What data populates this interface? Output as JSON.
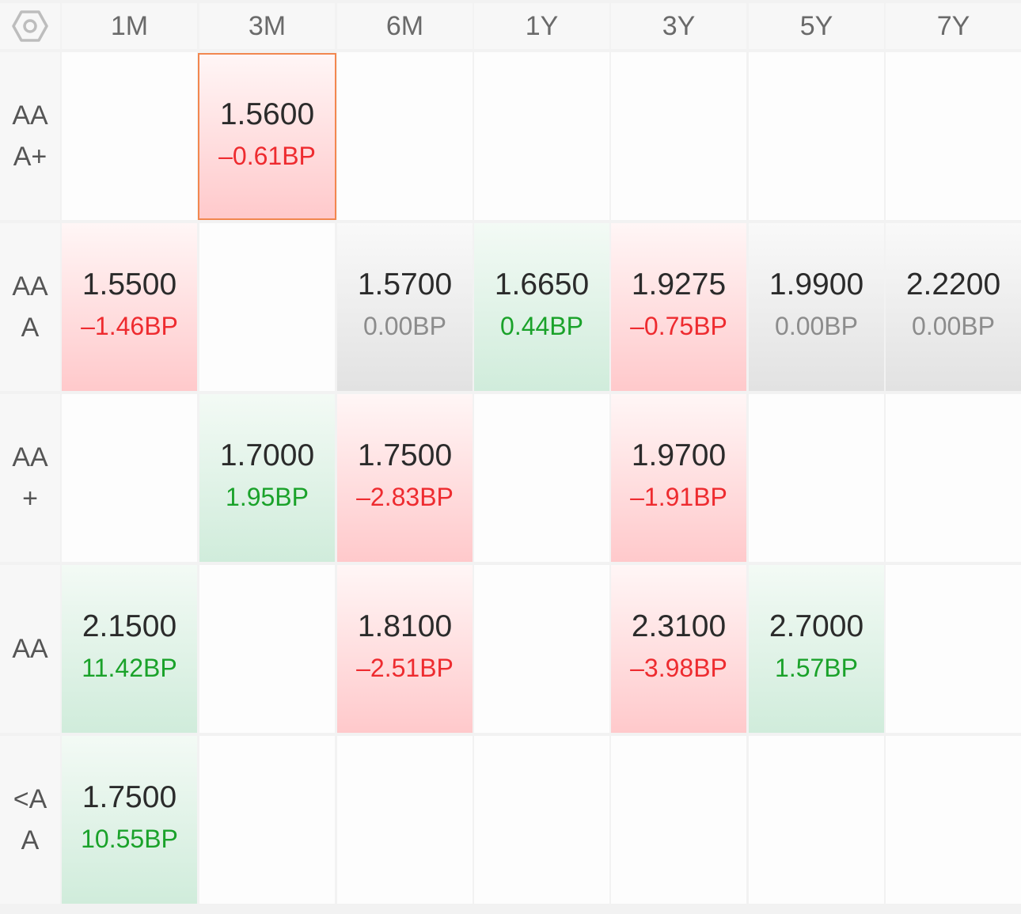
{
  "columns": [
    "1M",
    "3M",
    "6M",
    "1Y",
    "3Y",
    "5Y",
    "7Y"
  ],
  "rows": [
    {
      "label": "AA\nA+",
      "cells": [
        null,
        {
          "rate": "1.5600",
          "change": "–0.61BP",
          "trend": "up",
          "selected": true
        },
        null,
        null,
        null,
        null,
        null
      ]
    },
    {
      "label": "AA\nA",
      "cells": [
        {
          "rate": "1.5500",
          "change": "–1.46BP",
          "trend": "up"
        },
        null,
        {
          "rate": "1.5700",
          "change": "0.00BP",
          "trend": "flat"
        },
        {
          "rate": "1.6650",
          "change": "0.44BP",
          "trend": "down"
        },
        {
          "rate": "1.9275",
          "change": "–0.75BP",
          "trend": "up"
        },
        {
          "rate": "1.9900",
          "change": "0.00BP",
          "trend": "flat"
        },
        {
          "rate": "2.2200",
          "change": "0.00BP",
          "trend": "flat"
        }
      ]
    },
    {
      "label": "AA\n+",
      "cells": [
        null,
        {
          "rate": "1.7000",
          "change": "1.95BP",
          "trend": "down"
        },
        {
          "rate": "1.7500",
          "change": "–2.83BP",
          "trend": "up"
        },
        null,
        {
          "rate": "1.9700",
          "change": "–1.91BP",
          "trend": "up"
        },
        null,
        null
      ]
    },
    {
      "label": "AA",
      "cells": [
        {
          "rate": "2.1500",
          "change": "11.42BP",
          "trend": "down"
        },
        null,
        {
          "rate": "1.8100",
          "change": "–2.51BP",
          "trend": "up"
        },
        null,
        {
          "rate": "2.3100",
          "change": "–3.98BP",
          "trend": "up"
        },
        {
          "rate": "2.7000",
          "change": "1.57BP",
          "trend": "down"
        },
        null
      ]
    },
    {
      "label": "<A\nA",
      "cells": [
        {
          "rate": "1.7500",
          "change": "10.55BP",
          "trend": "down"
        },
        null,
        null,
        null,
        null,
        null,
        null
      ]
    }
  ],
  "icons": {
    "settings": "hexagon-settings-icon"
  },
  "colors": {
    "up_text": "#ee2b2f",
    "down_text": "#1aa22a",
    "flat_text": "#8c8c8c",
    "up_bg": "#ffc9cb",
    "down_bg": "#d0ecdb",
    "flat_bg": "#e2e2e2",
    "selected_border": "#f2874f"
  }
}
